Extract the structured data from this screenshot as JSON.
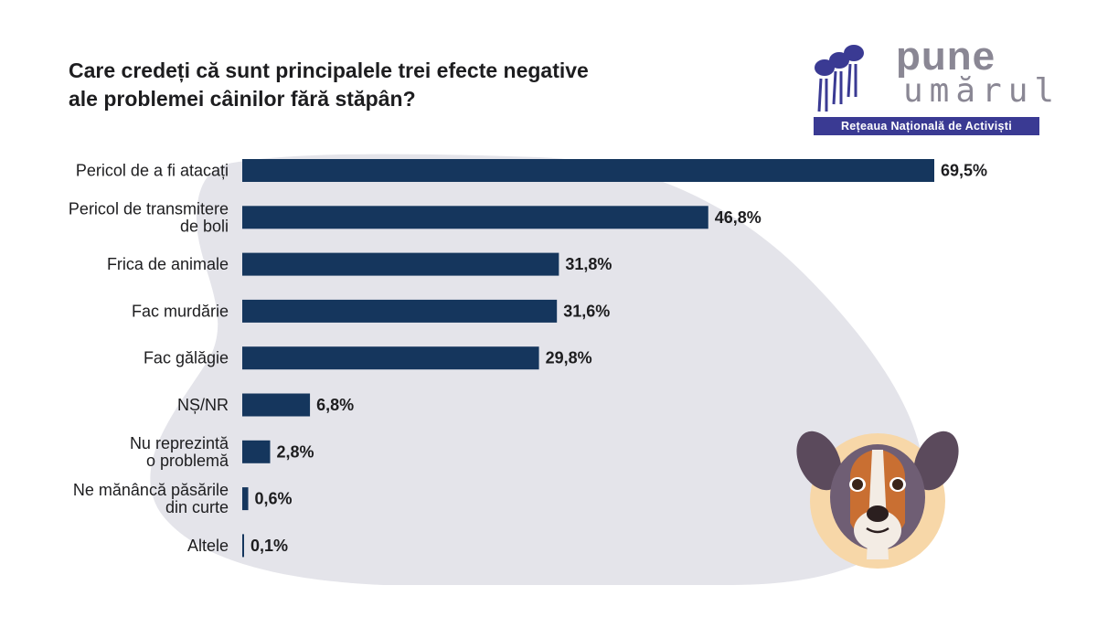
{
  "title_lines": [
    "Care credeți că sunt principalele trei efecte negative",
    "ale problemei câinilor fără stăpân?"
  ],
  "logo": {
    "word_top": "pune",
    "word_bottom": "umărul",
    "tagline": "Rețeaua Națională de Activiști"
  },
  "colors": {
    "bar": "#15365d",
    "background_blob": "#e4e4ea",
    "logo_purple": "#3a3a93",
    "logo_gray": "#8a8794"
  },
  "chart_data": {
    "type": "bar",
    "orientation": "horizontal",
    "categories": [
      [
        "Pericol de a fi atacați"
      ],
      [
        "Pericol de transmitere",
        "de boli"
      ],
      [
        "Frica de animale"
      ],
      [
        "Fac murdărie"
      ],
      [
        "Fac gălăgie"
      ],
      [
        "NȘ/NR"
      ],
      [
        "Nu reprezintă",
        "o problemă"
      ],
      [
        "Ne mănâncă păsările",
        "din curte"
      ],
      [
        "Altele"
      ]
    ],
    "values": [
      69.5,
      46.8,
      31.8,
      31.6,
      29.8,
      6.8,
      2.8,
      0.6,
      0.1
    ],
    "value_labels": [
      "69,5%",
      "46,8%",
      "31,8%",
      "31,6%",
      "29,8%",
      "6,8%",
      "2,8%",
      "0,6%",
      "0,1%"
    ],
    "unit": "%",
    "xlim": [
      0,
      69.5
    ],
    "grid": false,
    "legend": "none"
  },
  "illustration": "dog-portrait"
}
